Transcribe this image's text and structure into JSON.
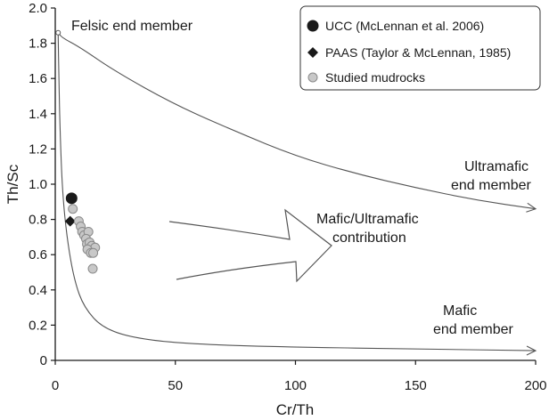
{
  "chart_data": {
    "type": "scatter",
    "xlabel": "Cr/Th",
    "ylabel": "Th/Sc",
    "xlim": [
      0,
      200
    ],
    "ylim": [
      0,
      2.0
    ],
    "x_ticks": [
      "0",
      "50",
      "100",
      "150",
      "200"
    ],
    "y_ticks": [
      "0",
      "0.2",
      "0.4",
      "0.6",
      "0.8",
      "1.0",
      "1.2",
      "1.4",
      "1.6",
      "1.8",
      "2.0"
    ],
    "grid": false,
    "legend_position": "top-right",
    "series": [
      {
        "name": "UCC (McLennan et al.  2006)",
        "marker": "circle-large",
        "color": "#1a1a1a",
        "points": [
          [
            6.8,
            0.92
          ]
        ]
      },
      {
        "name": "PAAS (Taylor & McLennan, 1985)",
        "marker": "diamond",
        "color": "#1a1a1a",
        "points": [
          [
            6.2,
            0.79
          ]
        ]
      },
      {
        "name": "Studied mudrocks",
        "marker": "circle",
        "color": "#c8c8c8",
        "points": [
          [
            7.3,
            0.86
          ],
          [
            9.8,
            0.79
          ],
          [
            10.6,
            0.76
          ],
          [
            11.2,
            0.73
          ],
          [
            12.0,
            0.71
          ],
          [
            13.8,
            0.73
          ],
          [
            12.8,
            0.69
          ],
          [
            13.2,
            0.66
          ],
          [
            14.3,
            0.67
          ],
          [
            15.2,
            0.65
          ],
          [
            16.6,
            0.64
          ],
          [
            13.4,
            0.63
          ],
          [
            14.8,
            0.61
          ],
          [
            15.8,
            0.61
          ],
          [
            15.6,
            0.52
          ]
        ]
      }
    ],
    "mixing_curves": [
      {
        "label_lines": [
          "Ultramafic",
          "end member"
        ],
        "points": [
          [
            1.2,
            1.86
          ],
          [
            3,
            1.83
          ],
          [
            10,
            1.78
          ],
          [
            25,
            1.64
          ],
          [
            50,
            1.45
          ],
          [
            75,
            1.3
          ],
          [
            100,
            1.16
          ],
          [
            125,
            1.06
          ],
          [
            150,
            0.98
          ],
          [
            175,
            0.91
          ],
          [
            200,
            0.86
          ]
        ]
      },
      {
        "label_lines": [
          "Mafic",
          "end member"
        ],
        "points": [
          [
            1.2,
            1.86
          ],
          [
            1.5,
            1.6
          ],
          [
            2,
            1.3
          ],
          [
            3,
            0.95
          ],
          [
            5,
            0.68
          ],
          [
            8,
            0.45
          ],
          [
            12,
            0.3
          ],
          [
            20,
            0.18
          ],
          [
            35,
            0.12
          ],
          [
            60,
            0.09
          ],
          [
            100,
            0.075
          ],
          [
            150,
            0.065
          ],
          [
            200,
            0.055
          ]
        ]
      }
    ],
    "endpoint": {
      "label": "Felsic end member",
      "x": 1.2,
      "y": 1.86
    },
    "arrow_label_lines": [
      "Mafic/Ultramafic",
      "contribution"
    ],
    "colors": {
      "axis": "#1a1a1a",
      "curve": "#555555",
      "legend_border": "#333333",
      "studied_fill": "#c8c8c8",
      "studied_stroke": "#8a8a8a"
    }
  }
}
